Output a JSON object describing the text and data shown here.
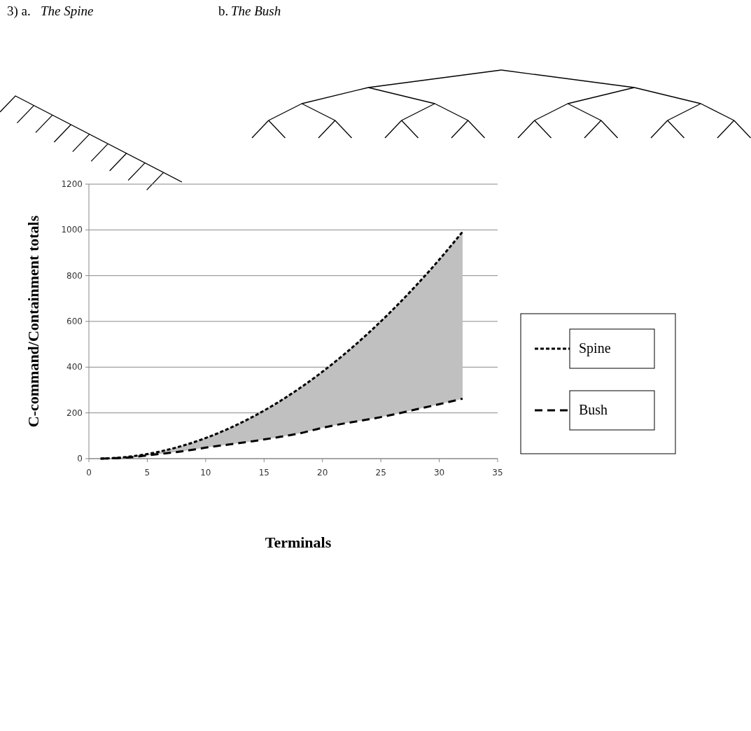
{
  "chart_data": {
    "type": "line",
    "xlabel": "Terminals",
    "ylabel": "C-command/Containment totals",
    "annotations": [
      "3)  a.",
      "The Spine",
      "b.",
      "The Bush"
    ],
    "x": [
      1,
      2,
      3,
      4,
      5,
      6,
      8,
      10,
      12,
      14,
      16,
      18,
      20,
      22,
      24,
      26,
      28,
      30,
      32
    ],
    "series": [
      {
        "name": "Spine",
        "color": "#000000",
        "line_style": "dotted",
        "values": [
          0,
          2,
          6,
          12,
          20,
          30,
          56,
          90,
          132,
          182,
          240,
          306,
          380,
          462,
          552,
          650,
          756,
          870,
          992
        ],
        "lower": [
          0,
          1,
          4,
          8,
          14,
          20,
          32,
          48,
          62,
          76,
          92,
          110,
          135,
          155,
          172,
          192,
          215,
          238,
          262
        ],
        "upper": [
          0,
          2,
          6,
          12,
          20,
          30,
          56,
          90,
          132,
          182,
          240,
          306,
          380,
          462,
          552,
          650,
          756,
          870,
          992
        ]
      },
      {
        "name": "Bush",
        "color": "#000000",
        "line_style": "dashed",
        "values": [
          0,
          1,
          4,
          8,
          14,
          20,
          32,
          48,
          62,
          76,
          92,
          110,
          135,
          155,
          172,
          192,
          215,
          238,
          262
        ]
      }
    ],
    "xlim": [
      0,
      35
    ],
    "xticks": [
      0,
      5,
      10,
      15,
      20,
      25,
      30,
      35
    ],
    "ylim": [
      0,
      1200
    ],
    "yticks": [
      0,
      200,
      400,
      600,
      800,
      1000,
      1200
    ],
    "grid": "y",
    "legend": "right"
  }
}
